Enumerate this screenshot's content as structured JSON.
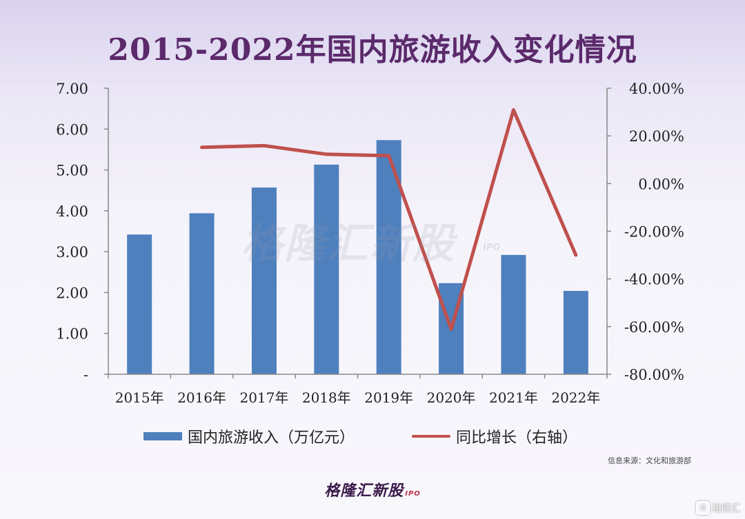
{
  "title": "2015-2022年国内旅游收入变化情况",
  "watermark": {
    "text": "格隆汇新股",
    "sub": "IPO"
  },
  "legend": {
    "bar_label": "国内旅游收入（万亿元）",
    "line_label": "同比增长（右轴）"
  },
  "source": "信息来源：文化和旅游部",
  "brand": {
    "text": "格隆汇新股",
    "sub": "IPO"
  },
  "corner_logo": {
    "icon": "G",
    "text": "格隆汇"
  },
  "colors": {
    "bar": "#4e80bd",
    "line": "#c0504d",
    "title": "#5b2a6b"
  },
  "chart_data": {
    "type": "bar",
    "title": "2015-2022年国内旅游收入变化情况",
    "categories": [
      "2015年",
      "2016年",
      "2017年",
      "2018年",
      "2019年",
      "2020年",
      "2021年",
      "2022年"
    ],
    "series": [
      {
        "name": "国内旅游收入（万亿元）",
        "type": "bar",
        "axis": "left",
        "values": [
          3.42,
          3.94,
          4.57,
          5.13,
          5.73,
          2.23,
          2.92,
          2.04
        ]
      },
      {
        "name": "同比增长（右轴）",
        "type": "line",
        "axis": "right",
        "values": [
          null,
          15.2,
          15.9,
          12.3,
          11.7,
          -61.1,
          30.9,
          -30.0
        ]
      }
    ],
    "left_axis": {
      "range": [
        0,
        7
      ],
      "ticks": [
        "-",
        "1.00",
        "2.00",
        "3.00",
        "4.00",
        "5.00",
        "6.00",
        "7.00"
      ]
    },
    "right_axis": {
      "range": [
        -80,
        40
      ],
      "ticks": [
        "-80.00%",
        "-60.00%",
        "-40.00%",
        "-20.00%",
        "0.00%",
        "20.00%",
        "40.00%"
      ]
    },
    "grid": false,
    "legend_position": "bottom"
  }
}
